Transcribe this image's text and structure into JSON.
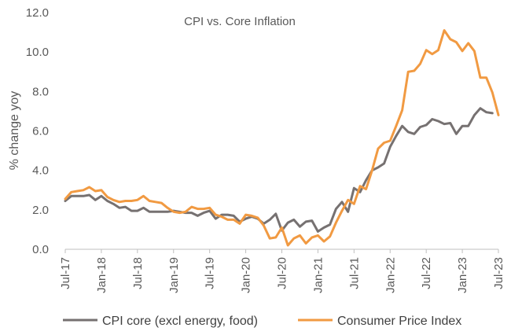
{
  "chart_data": {
    "type": "line",
    "title": "CPI vs. Core  Inflation",
    "ylabel": "% change yoy",
    "xlabel": "",
    "ylim": [
      0,
      12
    ],
    "yticks": [
      "0.0",
      "2.0",
      "4.0",
      "6.0",
      "8.0",
      "10.0",
      "12.0"
    ],
    "xticks": [
      "Jul-17",
      "Jan-18",
      "Jul-18",
      "Jan-19",
      "Jul-19",
      "Jan-20",
      "Jul-20",
      "Jan-21",
      "Jul-21",
      "Jan-22",
      "Jul-22",
      "Jan-23",
      "Jul-23"
    ],
    "grid": false,
    "legend_position": "bottom",
    "x_start": "2017-07",
    "series": [
      {
        "name": "CPI core (excl energy, food)",
        "color": "#767171",
        "values": [
          2.45,
          2.7,
          2.7,
          2.7,
          2.75,
          2.5,
          2.7,
          2.45,
          2.3,
          2.1,
          2.15,
          1.95,
          1.95,
          2.1,
          1.9,
          1.9,
          1.9,
          1.9,
          1.95,
          1.9,
          1.85,
          1.85,
          1.7,
          1.85,
          1.95,
          1.55,
          1.75,
          1.75,
          1.7,
          1.4,
          1.55,
          1.65,
          1.55,
          1.3,
          1.5,
          1.8,
          0.95,
          1.35,
          1.5,
          1.15,
          1.4,
          1.45,
          0.9,
          1.1,
          1.25,
          2.05,
          2.4,
          1.9,
          3.1,
          2.9,
          3.5,
          4.0,
          4.15,
          4.35,
          5.2,
          5.75,
          6.25,
          5.95,
          5.85,
          6.2,
          6.3,
          6.6,
          6.5,
          6.35,
          6.4,
          5.85,
          6.25,
          6.25,
          6.8,
          7.15,
          6.95,
          6.9
        ]
      },
      {
        "name": "Consumer Price Index",
        "color": "#F19A42",
        "values": [
          2.55,
          2.9,
          2.95,
          3.0,
          3.15,
          2.95,
          3.0,
          2.65,
          2.5,
          2.4,
          2.45,
          2.45,
          2.5,
          2.7,
          2.45,
          2.4,
          2.35,
          2.1,
          1.9,
          1.85,
          1.9,
          2.15,
          2.05,
          2.05,
          2.1,
          1.75,
          1.65,
          1.5,
          1.5,
          1.3,
          1.75,
          1.7,
          1.6,
          1.2,
          0.55,
          0.6,
          1.1,
          0.2,
          0.55,
          0.7,
          0.3,
          0.6,
          0.7,
          0.4,
          0.65,
          1.35,
          1.95,
          2.5,
          2.3,
          3.2,
          3.05,
          4.0,
          5.1,
          5.4,
          5.5,
          6.25,
          7.05,
          9.0,
          9.05,
          9.4,
          10.1,
          9.9,
          10.1,
          11.1,
          10.65,
          10.5,
          10.05,
          10.45,
          10.05,
          8.7,
          8.7,
          7.95,
          6.8
        ]
      }
    ]
  }
}
